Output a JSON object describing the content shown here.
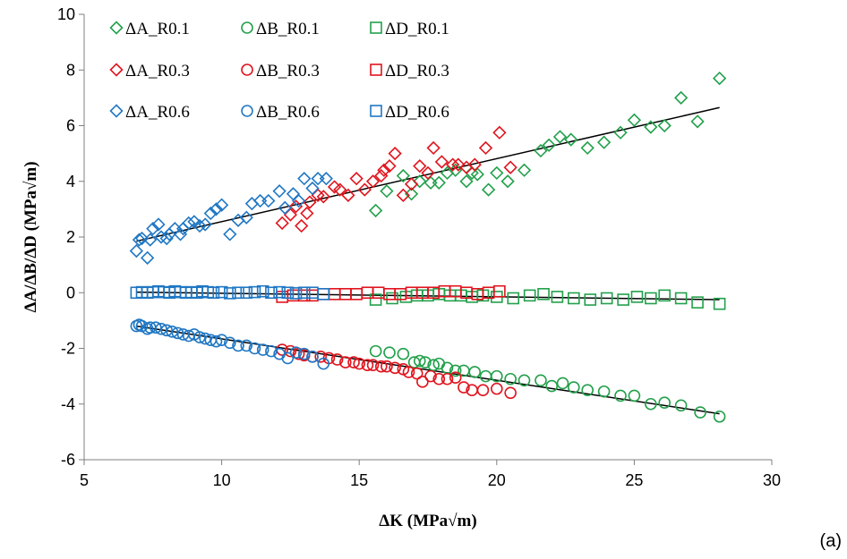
{
  "chart_data": {
    "type": "scatter",
    "xlabel": "ΔK (MPa√m)",
    "ylabel": "ΔA/ΔB/ΔD (MPa√m)",
    "panel_label": "(a)",
    "xlim": [
      5,
      30
    ],
    "ylim": [
      -6,
      10
    ],
    "xticks": [
      5,
      10,
      15,
      20,
      25,
      30
    ],
    "yticks": [
      -6,
      -4,
      -2,
      0,
      2,
      4,
      6,
      8,
      10
    ],
    "grid": false,
    "legend": "top-left",
    "colors": {
      "R0.1": "#22a04b",
      "R0.3": "#e0141e",
      "R0.6": "#1f77c4",
      "trend": "#000000"
    },
    "series": [
      {
        "name": "ΔA_R0.1",
        "marker": "diamond",
        "color": "#22a04b",
        "points": [
          [
            15.6,
            2.95
          ],
          [
            16.0,
            3.65
          ],
          [
            16.6,
            4.2
          ],
          [
            16.9,
            3.55
          ],
          [
            17.2,
            4.0
          ],
          [
            17.6,
            3.95
          ],
          [
            17.9,
            3.95
          ],
          [
            18.2,
            4.3
          ],
          [
            18.5,
            4.4
          ],
          [
            18.9,
            4.0
          ],
          [
            19.1,
            4.3
          ],
          [
            19.3,
            4.25
          ],
          [
            19.7,
            3.7
          ],
          [
            20.0,
            4.3
          ],
          [
            20.4,
            4.0
          ],
          [
            21.0,
            4.4
          ],
          [
            21.6,
            5.1
          ],
          [
            21.9,
            5.3
          ],
          [
            22.3,
            5.6
          ],
          [
            22.7,
            5.5
          ],
          [
            23.3,
            5.2
          ],
          [
            23.9,
            5.4
          ],
          [
            24.5,
            5.75
          ],
          [
            25.0,
            6.2
          ],
          [
            25.6,
            5.95
          ],
          [
            26.1,
            6.0
          ],
          [
            26.7,
            7.0
          ],
          [
            27.3,
            6.15
          ],
          [
            28.1,
            7.7
          ]
        ]
      },
      {
        "name": "ΔB_R0.1",
        "marker": "circle",
        "color": "#22a04b",
        "points": [
          [
            15.6,
            -2.1
          ],
          [
            16.1,
            -2.15
          ],
          [
            16.6,
            -2.2
          ],
          [
            17.0,
            -2.5
          ],
          [
            17.2,
            -2.45
          ],
          [
            17.4,
            -2.5
          ],
          [
            17.7,
            -2.6
          ],
          [
            17.9,
            -2.55
          ],
          [
            18.2,
            -2.7
          ],
          [
            18.5,
            -2.8
          ],
          [
            18.8,
            -2.8
          ],
          [
            19.2,
            -2.85
          ],
          [
            19.6,
            -3.0
          ],
          [
            20.0,
            -3.0
          ],
          [
            20.5,
            -3.1
          ],
          [
            21.0,
            -3.15
          ],
          [
            21.6,
            -3.15
          ],
          [
            22.0,
            -3.35
          ],
          [
            22.4,
            -3.25
          ],
          [
            22.8,
            -3.4
          ],
          [
            23.3,
            -3.5
          ],
          [
            23.9,
            -3.55
          ],
          [
            24.5,
            -3.7
          ],
          [
            25.0,
            -3.7
          ],
          [
            25.6,
            -4.0
          ],
          [
            26.1,
            -3.95
          ],
          [
            26.7,
            -4.05
          ],
          [
            27.4,
            -4.3
          ],
          [
            28.1,
            -4.45
          ]
        ]
      },
      {
        "name": "ΔD_R0.1",
        "marker": "square",
        "color": "#22a04b",
        "points": [
          [
            15.6,
            -0.25
          ],
          [
            16.2,
            -0.2
          ],
          [
            16.7,
            -0.15
          ],
          [
            17.1,
            -0.1
          ],
          [
            17.5,
            -0.1
          ],
          [
            17.9,
            -0.05
          ],
          [
            18.3,
            -0.1
          ],
          [
            18.7,
            -0.1
          ],
          [
            19.1,
            -0.15
          ],
          [
            19.5,
            -0.1
          ],
          [
            20.0,
            -0.15
          ],
          [
            20.6,
            -0.2
          ],
          [
            21.2,
            -0.1
          ],
          [
            21.7,
            -0.05
          ],
          [
            22.2,
            -0.15
          ],
          [
            22.8,
            -0.2
          ],
          [
            23.4,
            -0.25
          ],
          [
            24.0,
            -0.2
          ],
          [
            24.6,
            -0.25
          ],
          [
            25.1,
            -0.15
          ],
          [
            25.6,
            -0.2
          ],
          [
            26.1,
            -0.1
          ],
          [
            26.7,
            -0.2
          ],
          [
            27.3,
            -0.35
          ],
          [
            28.1,
            -0.4
          ]
        ]
      },
      {
        "name": "ΔA_R0.3",
        "marker": "diamond",
        "color": "#e0141e",
        "points": [
          [
            12.2,
            2.5
          ],
          [
            12.5,
            2.8
          ],
          [
            12.7,
            3.1
          ],
          [
            12.9,
            2.4
          ],
          [
            13.1,
            2.85
          ],
          [
            13.2,
            3.25
          ],
          [
            13.5,
            3.5
          ],
          [
            13.7,
            3.45
          ],
          [
            14.1,
            3.8
          ],
          [
            14.3,
            3.7
          ],
          [
            14.6,
            3.5
          ],
          [
            14.9,
            4.1
          ],
          [
            15.2,
            3.7
          ],
          [
            15.5,
            4.0
          ],
          [
            15.8,
            4.2
          ],
          [
            15.9,
            4.4
          ],
          [
            16.1,
            4.55
          ],
          [
            16.3,
            5.0
          ],
          [
            16.6,
            3.5
          ],
          [
            16.9,
            3.9
          ],
          [
            17.2,
            4.55
          ],
          [
            17.5,
            4.3
          ],
          [
            17.7,
            5.2
          ],
          [
            18.0,
            4.7
          ],
          [
            18.4,
            4.6
          ],
          [
            18.6,
            4.6
          ],
          [
            18.9,
            4.5
          ],
          [
            19.2,
            4.6
          ],
          [
            19.6,
            5.2
          ],
          [
            20.1,
            5.75
          ],
          [
            20.5,
            4.5
          ]
        ]
      },
      {
        "name": "ΔB_R0.3",
        "marker": "circle",
        "color": "#e0141e",
        "points": [
          [
            12.2,
            -2.05
          ],
          [
            12.5,
            -2.1
          ],
          [
            12.8,
            -2.2
          ],
          [
            13.0,
            -2.25
          ],
          [
            13.3,
            -2.3
          ],
          [
            13.6,
            -2.3
          ],
          [
            13.9,
            -2.35
          ],
          [
            14.2,
            -2.4
          ],
          [
            14.5,
            -2.5
          ],
          [
            14.8,
            -2.5
          ],
          [
            15.0,
            -2.55
          ],
          [
            15.3,
            -2.6
          ],
          [
            15.5,
            -2.6
          ],
          [
            15.8,
            -2.65
          ],
          [
            16.0,
            -2.65
          ],
          [
            16.3,
            -2.7
          ],
          [
            16.6,
            -2.75
          ],
          [
            16.8,
            -2.85
          ],
          [
            17.1,
            -2.9
          ],
          [
            17.3,
            -3.2
          ],
          [
            17.6,
            -3.0
          ],
          [
            17.9,
            -3.1
          ],
          [
            18.2,
            -3.1
          ],
          [
            18.5,
            -3.05
          ],
          [
            18.8,
            -3.4
          ],
          [
            19.1,
            -3.5
          ],
          [
            19.5,
            -3.5
          ],
          [
            20.0,
            -3.45
          ],
          [
            20.5,
            -3.6
          ]
        ]
      },
      {
        "name": "ΔD_R0.3",
        "marker": "square",
        "color": "#e0141e",
        "points": [
          [
            12.2,
            -0.15
          ],
          [
            12.6,
            -0.1
          ],
          [
            13.0,
            -0.1
          ],
          [
            13.3,
            -0.1
          ],
          [
            13.7,
            -0.05
          ],
          [
            14.1,
            -0.05
          ],
          [
            14.5,
            -0.05
          ],
          [
            14.9,
            -0.05
          ],
          [
            15.3,
            0.0
          ],
          [
            15.7,
            0.0
          ],
          [
            16.1,
            -0.05
          ],
          [
            16.5,
            -0.05
          ],
          [
            16.9,
            0.0
          ],
          [
            17.3,
            0.0
          ],
          [
            17.7,
            0.0
          ],
          [
            18.1,
            0.05
          ],
          [
            18.5,
            0.05
          ],
          [
            18.9,
            0.0
          ],
          [
            19.3,
            -0.05
          ],
          [
            19.7,
            0.0
          ],
          [
            20.1,
            0.05
          ]
        ]
      },
      {
        "name": "ΔA_R0.6",
        "marker": "diamond",
        "color": "#1f77c4",
        "points": [
          [
            6.9,
            1.5
          ],
          [
            7.0,
            1.9
          ],
          [
            7.1,
            1.95
          ],
          [
            7.3,
            1.25
          ],
          [
            7.4,
            1.9
          ],
          [
            7.5,
            2.3
          ],
          [
            7.7,
            2.45
          ],
          [
            7.8,
            2.0
          ],
          [
            8.0,
            1.95
          ],
          [
            8.1,
            2.1
          ],
          [
            8.3,
            2.3
          ],
          [
            8.5,
            2.1
          ],
          [
            8.6,
            2.3
          ],
          [
            8.8,
            2.5
          ],
          [
            9.0,
            2.55
          ],
          [
            9.2,
            2.4
          ],
          [
            9.4,
            2.45
          ],
          [
            9.6,
            2.85
          ],
          [
            9.8,
            3.0
          ],
          [
            10.0,
            3.15
          ],
          [
            10.3,
            2.1
          ],
          [
            10.6,
            2.6
          ],
          [
            10.9,
            2.7
          ],
          [
            11.1,
            3.2
          ],
          [
            11.4,
            3.3
          ],
          [
            11.7,
            3.3
          ],
          [
            12.1,
            3.65
          ],
          [
            12.3,
            3.05
          ],
          [
            12.6,
            3.55
          ],
          [
            12.8,
            3.3
          ],
          [
            13.0,
            4.1
          ],
          [
            13.3,
            3.75
          ],
          [
            13.5,
            4.1
          ],
          [
            13.8,
            4.1
          ]
        ]
      },
      {
        "name": "ΔB_R0.6",
        "marker": "circle",
        "color": "#1f77c4",
        "points": [
          [
            6.9,
            -1.2
          ],
          [
            7.0,
            -1.15
          ],
          [
            7.1,
            -1.2
          ],
          [
            7.3,
            -1.3
          ],
          [
            7.4,
            -1.25
          ],
          [
            7.6,
            -1.25
          ],
          [
            7.8,
            -1.3
          ],
          [
            8.0,
            -1.35
          ],
          [
            8.2,
            -1.4
          ],
          [
            8.4,
            -1.45
          ],
          [
            8.6,
            -1.5
          ],
          [
            8.8,
            -1.55
          ],
          [
            9.0,
            -1.5
          ],
          [
            9.2,
            -1.6
          ],
          [
            9.4,
            -1.65
          ],
          [
            9.6,
            -1.7
          ],
          [
            9.8,
            -1.75
          ],
          [
            10.0,
            -1.7
          ],
          [
            10.3,
            -1.8
          ],
          [
            10.6,
            -1.9
          ],
          [
            10.9,
            -1.9
          ],
          [
            11.2,
            -2.0
          ],
          [
            11.5,
            -2.05
          ],
          [
            11.8,
            -2.1
          ],
          [
            12.1,
            -2.2
          ],
          [
            12.4,
            -2.35
          ],
          [
            12.7,
            -2.15
          ],
          [
            13.0,
            -2.2
          ],
          [
            13.3,
            -2.3
          ],
          [
            13.7,
            -2.55
          ]
        ]
      },
      {
        "name": "ΔD_R0.6",
        "marker": "square",
        "color": "#1f77c4",
        "points": [
          [
            6.9,
            0.0
          ],
          [
            7.1,
            0.02
          ],
          [
            7.3,
            0.0
          ],
          [
            7.5,
            0.02
          ],
          [
            7.7,
            0.05
          ],
          [
            7.9,
            0.02
          ],
          [
            8.1,
            0.0
          ],
          [
            8.3,
            0.05
          ],
          [
            8.5,
            0.02
          ],
          [
            8.7,
            0.0
          ],
          [
            8.9,
            0.02
          ],
          [
            9.1,
            0.0
          ],
          [
            9.3,
            0.05
          ],
          [
            9.5,
            0.02
          ],
          [
            9.7,
            0.0
          ],
          [
            10.0,
            0.02
          ],
          [
            10.3,
            -0.02
          ],
          [
            10.6,
            0.0
          ],
          [
            10.9,
            0.0
          ],
          [
            11.2,
            0.02
          ],
          [
            11.5,
            0.05
          ],
          [
            11.8,
            0.0
          ],
          [
            12.1,
            0.02
          ],
          [
            12.4,
            0.0
          ],
          [
            12.7,
            -0.02
          ],
          [
            13.0,
            0.0
          ],
          [
            13.3,
            0.0
          ],
          [
            13.7,
            -0.05
          ]
        ]
      }
    ],
    "trendlines": [
      {
        "x": [
          6.9,
          28.1
        ],
        "y": [
          1.85,
          6.65
        ]
      },
      {
        "x": [
          6.9,
          28.1
        ],
        "y": [
          0.02,
          -0.25
        ]
      },
      {
        "x": [
          6.9,
          28.1
        ],
        "y": [
          -1.2,
          -4.35
        ]
      }
    ]
  }
}
